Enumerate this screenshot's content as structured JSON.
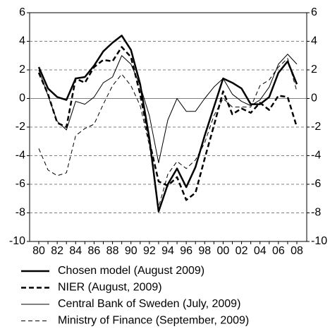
{
  "chart_data": {
    "type": "line",
    "categories": [
      "80",
      null,
      "82",
      null,
      "84",
      null,
      "86",
      null,
      "88",
      null,
      "90",
      null,
      "92",
      null,
      "94",
      null,
      "96",
      null,
      "98",
      null,
      "00",
      null,
      "02",
      null,
      "04",
      null,
      "06",
      null,
      "08"
    ],
    "ylim": [
      -10,
      6
    ],
    "yticks": [
      -10,
      -8,
      -6,
      -4,
      -2,
      0,
      2,
      4,
      6
    ],
    "grid": true,
    "series": [
      {
        "name": "Chosen model (August 2009)",
        "color": "#000000",
        "width": 2.5,
        "dash": false,
        "values": [
          2.2,
          0.7,
          0.1,
          -0.1,
          1.4,
          1.5,
          2.3,
          3.3,
          3.9,
          4.4,
          3.4,
          1.0,
          -2.8,
          -7.9,
          -6.0,
          -4.9,
          -6.2,
          -4.8,
          -2.6,
          -0.6,
          1.4,
          1.1,
          0.7,
          -0.4,
          -0.4,
          0.1,
          1.8,
          2.6,
          1.0
        ]
      },
      {
        "name": "NIER (August, 2009)",
        "color": "#000000",
        "width": 2.5,
        "dash": true,
        "values": [
          1.8,
          0.3,
          -1.7,
          -2.0,
          1.4,
          1.1,
          2.2,
          2.7,
          2.6,
          3.6,
          2.9,
          0.3,
          -3.0,
          -5.8,
          -6.1,
          -5.5,
          -7.1,
          -6.6,
          -4.2,
          -1.9,
          0.5,
          -1.1,
          -0.7,
          -1.0,
          -0.3,
          -0.8,
          0.2,
          0.1,
          -2.0
        ]
      },
      {
        "name": "Central Bank of Sweden (July, 2009)",
        "color": "#000000",
        "width": 1,
        "dash": false,
        "values": [
          2.0,
          0.2,
          -1.6,
          -2.2,
          -0.2,
          -0.4,
          0.1,
          1.1,
          1.5,
          3.0,
          2.4,
          0.9,
          -1.2,
          -4.5,
          -1.5,
          0.0,
          -0.9,
          -0.9,
          0.0,
          0.8,
          1.4,
          0.3,
          -0.2,
          -0.5,
          -0.1,
          0.8,
          2.4,
          3.1,
          2.4
        ]
      },
      {
        "name": "Ministry of Finance (September, 2009)",
        "color": "#000000",
        "width": 1,
        "dash": true,
        "values": [
          -3.5,
          -5.0,
          -5.4,
          -5.2,
          -2.6,
          -2.1,
          -1.8,
          -0.4,
          0.9,
          1.7,
          0.9,
          -0.5,
          -3.3,
          -7.6,
          -5.3,
          -4.4,
          -4.9,
          -4.3,
          -3.1,
          -1.2,
          0.0,
          -0.6,
          -0.6,
          -0.6,
          0.9,
          1.3,
          2.2,
          2.8,
          0.5
        ]
      }
    ]
  }
}
